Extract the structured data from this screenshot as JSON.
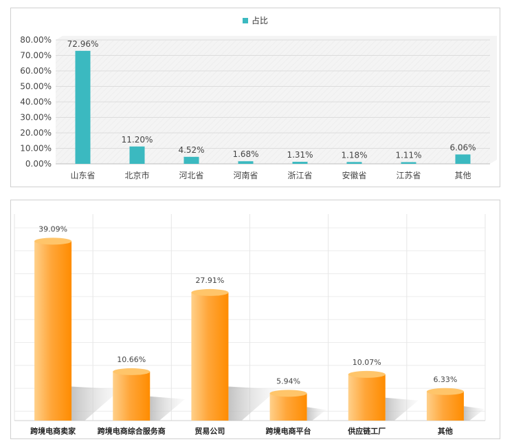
{
  "chart_data": [
    {
      "type": "bar",
      "title": "",
      "legend": [
        "占比"
      ],
      "legend_position": "top-center",
      "categories": [
        "山东省",
        "北京市",
        "河北省",
        "河南省",
        "浙江省",
        "安徽省",
        "江苏省",
        "其他"
      ],
      "values": [
        72.96,
        11.2,
        4.52,
        1.68,
        1.31,
        1.18,
        1.11,
        6.06
      ],
      "data_labels": [
        "72.96%",
        "11.20%",
        "4.52%",
        "1.68%",
        "1.31%",
        "1.18%",
        "1.11%",
        "6.06%"
      ],
      "yticks": [
        "0.00%",
        "10.00%",
        "20.00%",
        "30.00%",
        "40.00%",
        "50.00%",
        "60.00%",
        "70.00%",
        "80.00%"
      ],
      "ylim": [
        0,
        80
      ],
      "color": "#3bb9c0"
    },
    {
      "type": "bar",
      "title": "",
      "categories": [
        "跨境电商卖家",
        "跨境电商综合服务商",
        "贸易公司",
        "跨境电商平台",
        "供应链工厂",
        "其他"
      ],
      "values": [
        39.09,
        10.66,
        27.91,
        5.94,
        10.07,
        6.33
      ],
      "data_labels": [
        "39.09%",
        "10.66%",
        "27.91%",
        "5.94%",
        "10.07%",
        "6.33%"
      ],
      "ylim": [
        0,
        45
      ],
      "color": "#ff9a1a"
    }
  ]
}
